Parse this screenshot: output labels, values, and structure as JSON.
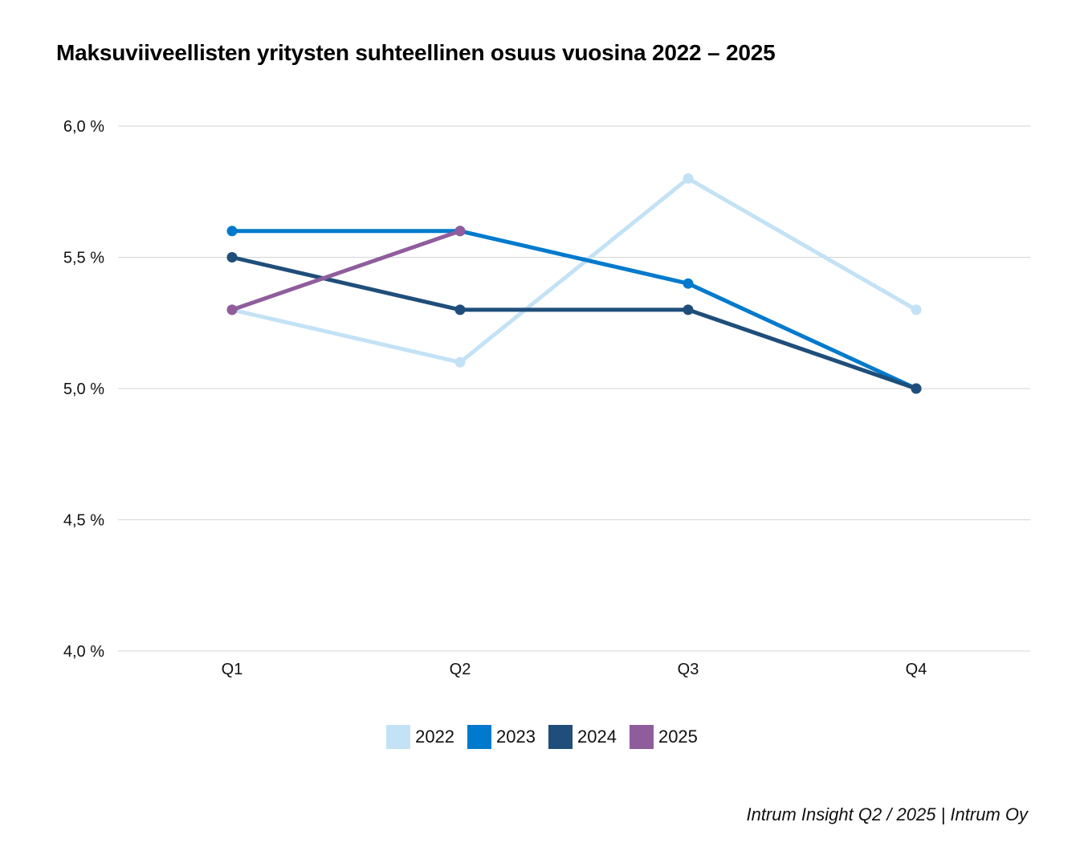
{
  "chart_data": {
    "type": "line",
    "title": "Maksuviiveellisten yritysten suhteellinen osuus vuosina 2022 – 2025",
    "categories": [
      "Q1",
      "Q2",
      "Q3",
      "Q4"
    ],
    "y_ticks": [
      4.0,
      4.5,
      5.0,
      5.5,
      6.0
    ],
    "y_tick_labels": [
      "4,0 %",
      "4,5 %",
      "5,0 %",
      "5,5 %",
      "6,0 %"
    ],
    "ylim": [
      4.0,
      6.0
    ],
    "xlabel": "",
    "ylabel": "",
    "grid": true,
    "legend_position": "bottom",
    "series": [
      {
        "name": "2022",
        "color": "#c3e2f5",
        "values": [
          5.3,
          5.1,
          5.8,
          5.3
        ]
      },
      {
        "name": "2023",
        "color": "#007acc",
        "values": [
          5.6,
          5.6,
          5.4,
          5.0
        ]
      },
      {
        "name": "2024",
        "color": "#1f4e7a",
        "values": [
          5.5,
          5.3,
          5.3,
          5.0
        ]
      },
      {
        "name": "2025",
        "color": "#8f5d9c",
        "values": [
          5.3,
          5.6,
          null,
          null
        ]
      }
    ]
  },
  "footer": {
    "source": "Intrum Insight Q2 / 2025 | Intrum Oy"
  }
}
